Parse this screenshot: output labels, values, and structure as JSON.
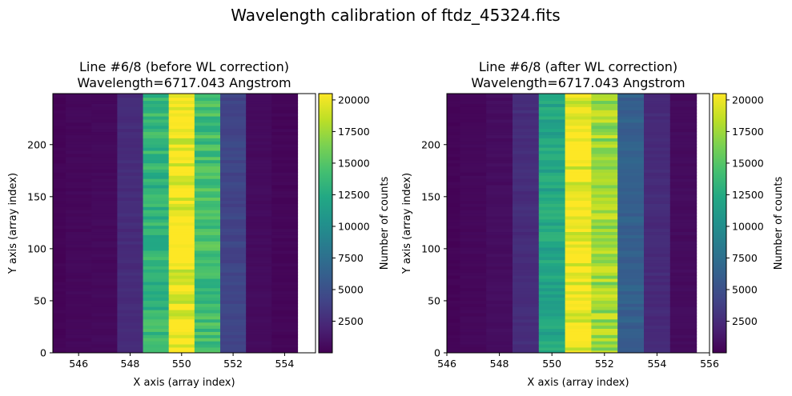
{
  "figure": {
    "suptitle": "Wavelength calibration of ftdz_45324.fits"
  },
  "chart_data": [
    {
      "type": "heatmap",
      "title_line1": "Line #6/8 (before WL correction)",
      "title_line2": "Wavelength=6717.043 Angstrom",
      "xlabel": "X axis (array index)",
      "ylabel": "Y axis (array index)",
      "xlim": [
        545,
        555.2
      ],
      "ylim": [
        0,
        249
      ],
      "xticks": [
        546,
        548,
        550,
        552,
        554
      ],
      "yticks": [
        0,
        50,
        100,
        150,
        200
      ],
      "columns_x": [
        545,
        546,
        547,
        548,
        549,
        550,
        551,
        552,
        553,
        554
      ],
      "column_counts": [
        200,
        400,
        500,
        2500,
        13500,
        20300,
        14200,
        4200,
        600,
        300
      ],
      "colorbar": {
        "label": "Number of counts",
        "range": [
          0,
          20500
        ],
        "ticks": [
          2500,
          5000,
          7500,
          10000,
          12500,
          15000,
          17500,
          20000
        ]
      }
    },
    {
      "type": "heatmap",
      "title_line1": "Line #6/8 (after WL correction)",
      "title_line2": "Wavelength=6717.043 Angstrom",
      "xlabel": "X axis (array index)",
      "ylabel": "Y axis (array index)",
      "xlim": [
        546,
        556
      ],
      "ylim": [
        0,
        249
      ],
      "xticks": [
        546,
        548,
        550,
        552,
        554,
        556
      ],
      "yticks": [
        0,
        50,
        100,
        150,
        200
      ],
      "columns_x": [
        546,
        547,
        548,
        549,
        550,
        551,
        552,
        553,
        554,
        555
      ],
      "column_counts": [
        200,
        400,
        700,
        2600,
        12000,
        20300,
        17500,
        6200,
        2500,
        600
      ],
      "colorbar": {
        "label": "Number of counts",
        "range": [
          0,
          20500
        ],
        "ticks": [
          2500,
          5000,
          7500,
          10000,
          12500,
          15000,
          17500,
          20000
        ]
      }
    }
  ]
}
